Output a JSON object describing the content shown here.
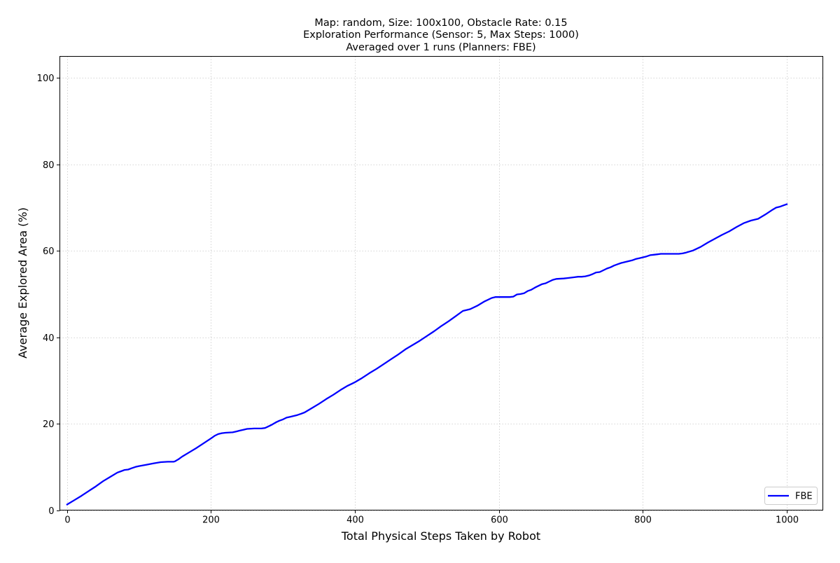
{
  "chart_data": {
    "type": "line",
    "title_lines": [
      "Map: random, Size: 100x100, Obstacle Rate: 0.15",
      "Exploration Performance (Sensor: 5, Max Steps: 1000)",
      "Averaged over 1 runs (Planners: FBE)"
    ],
    "xlabel": "Total Physical Steps Taken by Robot",
    "ylabel": "Average Explored Area (%)",
    "xlim": [
      -10,
      1050
    ],
    "ylim": [
      0,
      105
    ],
    "xticks": [
      0,
      200,
      400,
      600,
      800,
      1000
    ],
    "yticks": [
      0,
      20,
      40,
      60,
      80,
      100
    ],
    "grid": true,
    "legend_position": "lower-right",
    "series": [
      {
        "name": "FBE",
        "color": "#0000ff",
        "x": [
          0,
          10,
          20,
          30,
          40,
          50,
          60,
          70,
          75,
          80,
          85,
          90,
          95,
          100,
          110,
          120,
          130,
          140,
          148,
          150,
          155,
          160,
          170,
          180,
          190,
          200,
          205,
          210,
          215,
          220,
          230,
          235,
          240,
          245,
          250,
          260,
          270,
          275,
          280,
          285,
          290,
          295,
          300,
          305,
          310,
          315,
          320,
          325,
          330,
          340,
          350,
          360,
          370,
          380,
          390,
          395,
          400,
          410,
          420,
          430,
          440,
          450,
          460,
          470,
          480,
          490,
          500,
          510,
          520,
          530,
          540,
          550,
          555,
          560,
          570,
          580,
          590,
          595,
          600,
          610,
          615,
          620,
          625,
          630,
          635,
          640,
          645,
          650,
          655,
          660,
          665,
          670,
          675,
          680,
          690,
          695,
          700,
          705,
          710,
          715,
          720,
          725,
          730,
          735,
          740,
          745,
          750,
          755,
          760,
          765,
          770,
          775,
          780,
          785,
          790,
          795,
          800,
          805,
          810,
          815,
          820,
          825,
          830,
          840,
          850,
          855,
          860,
          870,
          880,
          890,
          900,
          910,
          920,
          930,
          940,
          950,
          955,
          960,
          970,
          980,
          985,
          990,
          995,
          1000
        ],
        "values": [
          1.3,
          2.3,
          3.3,
          4.4,
          5.5,
          6.7,
          7.7,
          8.7,
          9.0,
          9.3,
          9.4,
          9.7,
          10.0,
          10.2,
          10.5,
          10.8,
          11.1,
          11.2,
          11.2,
          11.3,
          11.8,
          12.4,
          13.4,
          14.4,
          15.5,
          16.6,
          17.2,
          17.6,
          17.8,
          17.9,
          18.0,
          18.2,
          18.4,
          18.6,
          18.8,
          18.9,
          18.9,
          19.0,
          19.4,
          19.8,
          20.3,
          20.7,
          21.0,
          21.4,
          21.6,
          21.8,
          22.0,
          22.3,
          22.6,
          23.6,
          24.6,
          25.7,
          26.7,
          27.8,
          28.8,
          29.2,
          29.6,
          30.6,
          31.7,
          32.7,
          33.8,
          34.9,
          36.0,
          37.2,
          38.2,
          39.2,
          40.3,
          41.4,
          42.6,
          43.7,
          44.9,
          46.1,
          46.3,
          46.5,
          47.3,
          48.3,
          49.1,
          49.3,
          49.3,
          49.3,
          49.3,
          49.4,
          49.9,
          50.0,
          50.2,
          50.7,
          51.0,
          51.5,
          51.9,
          52.3,
          52.5,
          52.9,
          53.3,
          53.5,
          53.6,
          53.7,
          53.8,
          53.9,
          54.0,
          54.0,
          54.1,
          54.3,
          54.6,
          55.0,
          55.1,
          55.5,
          55.9,
          56.2,
          56.6,
          56.9,
          57.2,
          57.4,
          57.6,
          57.8,
          58.1,
          58.3,
          58.5,
          58.7,
          59.0,
          59.1,
          59.2,
          59.3,
          59.3,
          59.3,
          59.3,
          59.4,
          59.6,
          60.1,
          60.9,
          61.9,
          62.8,
          63.7,
          64.5,
          65.5,
          66.4,
          67.0,
          67.2,
          67.4,
          68.4,
          69.5,
          70.0,
          70.2,
          70.5,
          70.8
        ]
      }
    ]
  }
}
